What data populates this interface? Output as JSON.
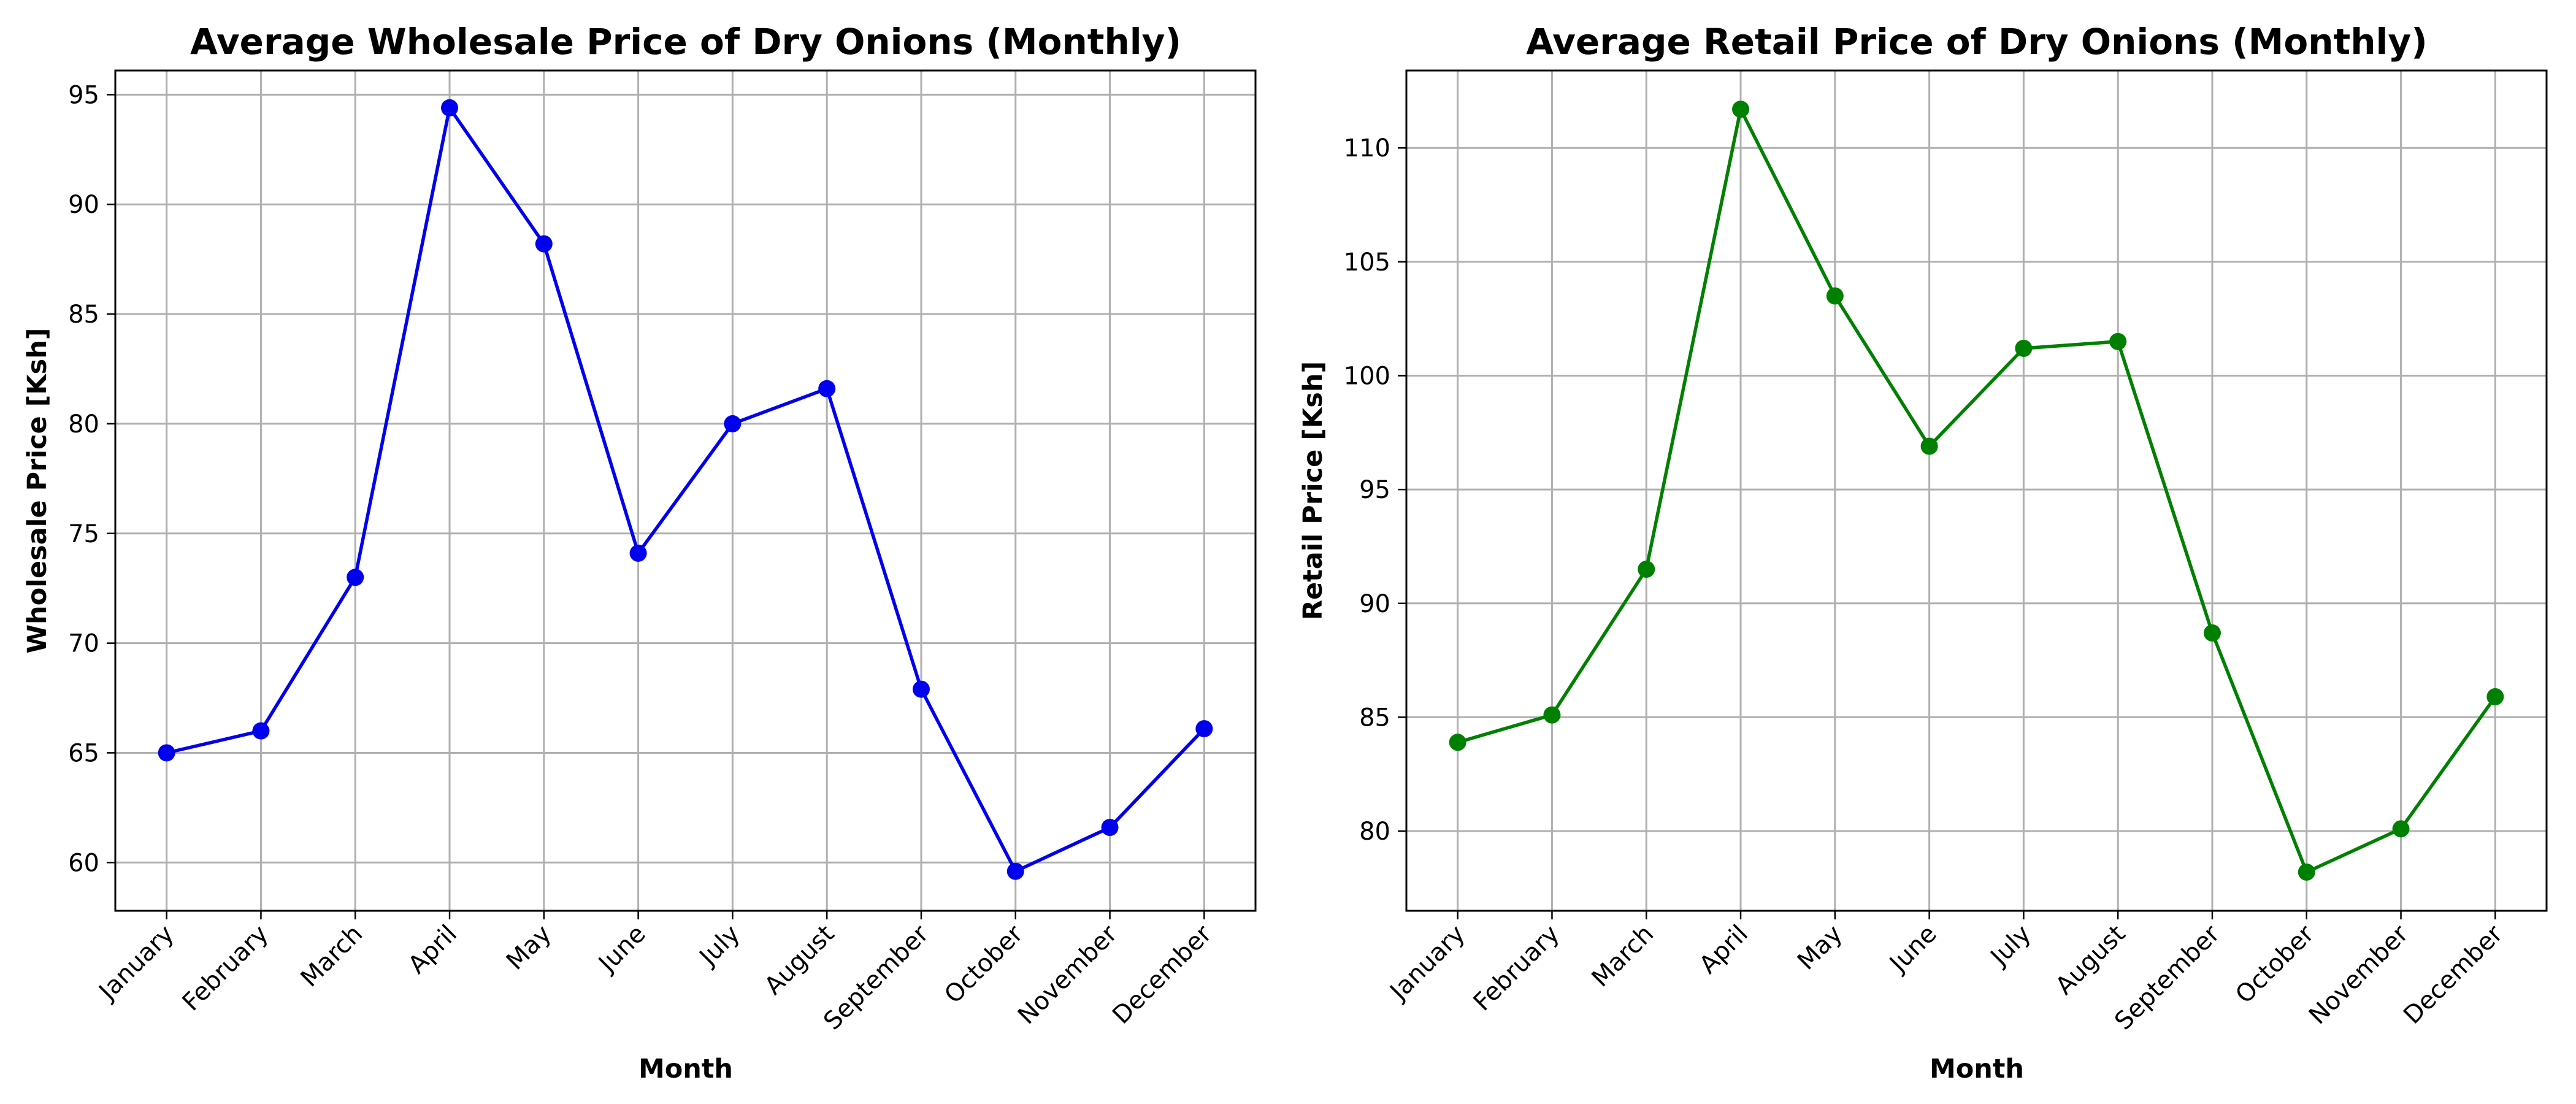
{
  "chart_data": [
    {
      "type": "line",
      "title": "Average Wholesale Price of Dry Onions (Monthly)",
      "xlabel": "Month",
      "ylabel": "Wholesale Price [Ksh]",
      "categories": [
        "January",
        "February",
        "March",
        "April",
        "May",
        "June",
        "July",
        "August",
        "September",
        "October",
        "November",
        "December"
      ],
      "values": [
        65.0,
        66.0,
        73.0,
        94.4,
        88.2,
        74.1,
        80.0,
        81.6,
        67.9,
        59.6,
        61.6,
        66.1
      ],
      "ylim": [
        57.8,
        96.1
      ],
      "yticks": [
        60,
        65,
        70,
        75,
        80,
        85,
        90,
        95
      ],
      "color": "#0000ee",
      "grid": true,
      "marker": "circle"
    },
    {
      "type": "line",
      "title": "Average Retail Price of Dry Onions (Monthly)",
      "xlabel": "Month",
      "ylabel": "Retail Price [Ksh]",
      "categories": [
        "January",
        "February",
        "March",
        "April",
        "May",
        "June",
        "July",
        "August",
        "September",
        "October",
        "November",
        "December"
      ],
      "values": [
        83.9,
        85.1,
        91.5,
        111.7,
        103.5,
        96.9,
        101.2,
        101.5,
        88.7,
        78.2,
        80.1,
        85.9
      ],
      "ylim": [
        76.5,
        113.4
      ],
      "yticks": [
        80,
        85,
        90,
        95,
        100,
        105,
        110
      ],
      "color": "#008000",
      "grid": true,
      "marker": "circle"
    }
  ]
}
